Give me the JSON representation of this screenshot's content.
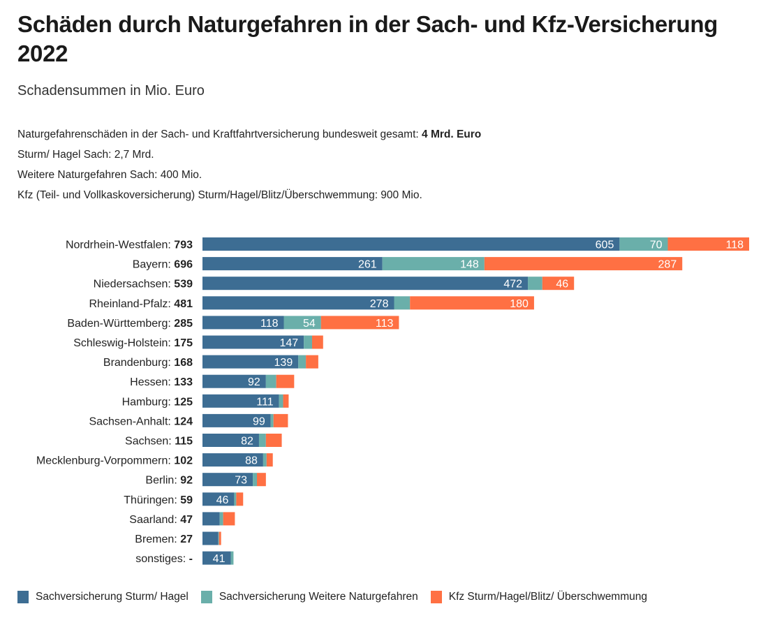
{
  "header": {
    "title": "Schäden durch Naturgefahren in der Sach- und Kfz-Versicherung 2022",
    "subtitle": "Schadensummen in Mio. Euro"
  },
  "notes": [
    {
      "text": "Naturgefahrenschäden in der Sach- und Kraftfahrtversicherung bundesweit gesamt: ",
      "bold": "4 Mrd. Euro"
    },
    {
      "text": "Sturm/ Hagel Sach: 2,7 Mrd.",
      "bold": ""
    },
    {
      "text": "Weitere Naturgefahren Sach: 400 Mio.",
      "bold": ""
    },
    {
      "text": "Kfz (Teil- und Vollkaskoversicherung) Sturm/Hagel/Blitz/Überschwemmung: 900 Mio.",
      "bold": ""
    }
  ],
  "chart_data": {
    "type": "bar",
    "orientation": "horizontal",
    "stacked": true,
    "title": "Schäden durch Naturgefahren in der Sach- und Kfz-Versicherung 2022",
    "subtitle": "Schadensummen in Mio. Euro",
    "xlabel": "",
    "ylabel": "",
    "grid": false,
    "legend_position": "bottom-left",
    "categories": [
      "Nordrhein-Westfalen",
      "Bayern",
      "Niedersachsen",
      "Rheinland-Pfalz",
      "Baden-Württemberg",
      "Schleswig-Holstein",
      "Brandenburg",
      "Hessen",
      "Hamburg",
      "Sachsen-Anhalt",
      "Sachsen",
      "Mecklenburg-Vorpommern",
      "Berlin",
      "Thüringen",
      "Saarland",
      "Bremen",
      "sonstiges"
    ],
    "totals": [
      "793",
      "696",
      "539",
      "481",
      "285",
      "175",
      "168",
      "133",
      "125",
      "124",
      "115",
      "102",
      "92",
      "59",
      "47",
      "27",
      "-"
    ],
    "series": [
      {
        "name": "Sachversicherung Sturm/ Hagel",
        "color": "#3d6d93",
        "values": [
          605,
          261,
          472,
          278,
          118,
          147,
          139,
          92,
          111,
          99,
          82,
          88,
          73,
          46,
          25,
          23,
          41
        ],
        "labeled": [
          true,
          true,
          true,
          true,
          true,
          true,
          true,
          true,
          true,
          true,
          true,
          true,
          true,
          true,
          false,
          false,
          true
        ]
      },
      {
        "name": "Sachversicherung Weitere Naturgefahren",
        "color": "#6aafaa",
        "values": [
          70,
          148,
          21,
          23,
          54,
          12,
          11,
          15,
          6,
          4,
          10,
          5,
          6,
          3,
          5,
          1,
          4
        ],
        "labeled": [
          true,
          true,
          false,
          false,
          true,
          false,
          false,
          false,
          false,
          false,
          false,
          false,
          false,
          false,
          false,
          false,
          false
        ]
      },
      {
        "name": "Kfz Sturm/Hagel/Blitz/ Überschwemmung",
        "color": "#ff7043",
        "values": [
          118,
          287,
          46,
          180,
          113,
          16,
          18,
          26,
          8,
          21,
          23,
          9,
          13,
          10,
          17,
          3,
          0
        ],
        "labeled": [
          true,
          true,
          true,
          true,
          true,
          false,
          false,
          false,
          false,
          false,
          false,
          false,
          false,
          false,
          false,
          false,
          false
        ]
      }
    ],
    "xlim": [
      0,
      793
    ]
  }
}
